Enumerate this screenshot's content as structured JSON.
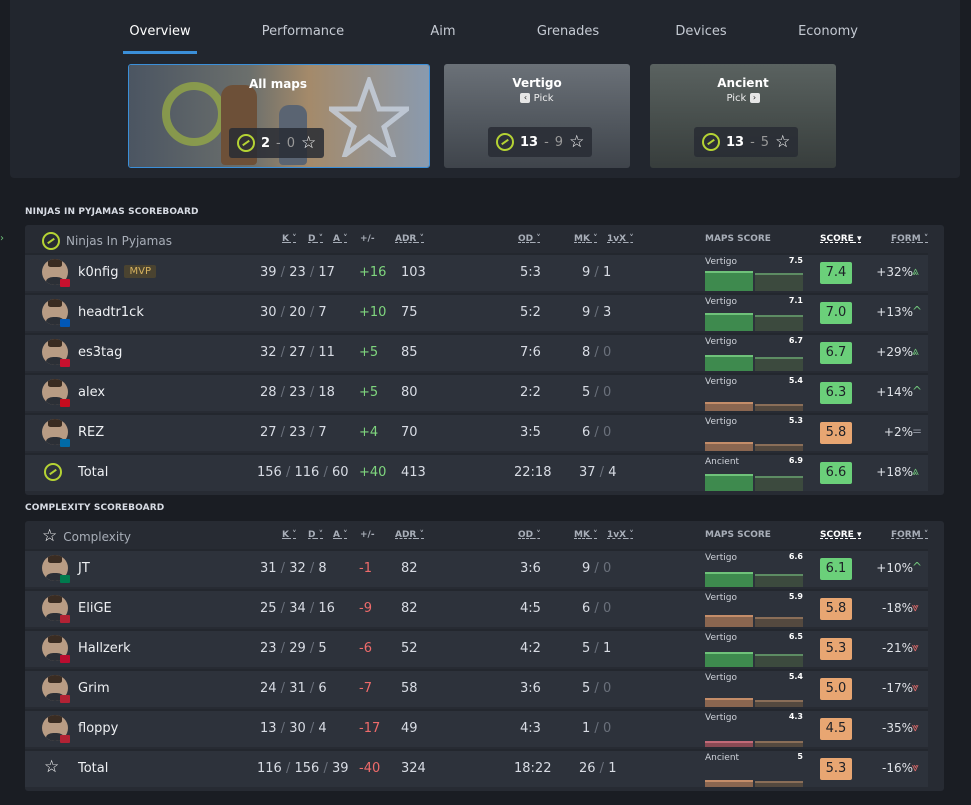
{
  "tabs": [
    "Overview",
    "Performance",
    "Aim",
    "Grenades",
    "Devices",
    "Economy"
  ],
  "maps": [
    {
      "title": "All maps",
      "pick": "",
      "pick_arrow": "",
      "won": "2",
      "lost": "0"
    },
    {
      "title": "Vertigo",
      "pick": "Pick",
      "pick_arrow": "‹",
      "won": "13",
      "lost": "9"
    },
    {
      "title": "Ancient",
      "pick": "Pick",
      "pick_arrow": "›",
      "won": "13",
      "lost": "5"
    }
  ],
  "scoreboards": [
    {
      "title": "NINJAS IN PYJAMAS SCOREBOARD",
      "team": "Ninjas In Pyjamas",
      "headers": {
        "k": "K",
        "d": "D",
        "a": "A",
        "pm": "+/-",
        "adr": "ADR",
        "od": "OD",
        "mk": "MK",
        "clutch": "1vX",
        "maps_score": "MAPS SCORE",
        "score": "SCORE",
        "form": "FORM"
      },
      "rows": [
        {
          "name": "k0nfig",
          "mvp": "MVP",
          "k": "39",
          "d": "23",
          "a": "17",
          "pm": "+16",
          "adr": "103",
          "od": "5:3",
          "mk": "9",
          "clutch": "1",
          "map": "Vertigo",
          "map_score": "7.5",
          "score": "7.4",
          "form": "+32%",
          "form_icon": "⩓",
          "flag": "#c8102e"
        },
        {
          "name": "headtr1ck",
          "mvp": "",
          "k": "30",
          "d": "20",
          "a": "7",
          "pm": "+10",
          "adr": "75",
          "od": "5:2",
          "mk": "9",
          "clutch": "3",
          "map": "Vertigo",
          "map_score": "7.1",
          "score": "7.0",
          "form": "+13%",
          "form_icon": "^",
          "flag": "#0057b7"
        },
        {
          "name": "es3tag",
          "mvp": "",
          "k": "32",
          "d": "27",
          "a": "11",
          "pm": "+5",
          "adr": "85",
          "od": "7:6",
          "mk": "8",
          "clutch": "0",
          "map": "Vertigo",
          "map_score": "6.7",
          "score": "6.7",
          "form": "+29%",
          "form_icon": "⩓",
          "flag": "#c8102e"
        },
        {
          "name": "alex",
          "mvp": "",
          "k": "28",
          "d": "23",
          "a": "18",
          "pm": "+5",
          "adr": "80",
          "od": "2:2",
          "mk": "5",
          "clutch": "0",
          "map": "Vertigo",
          "map_score": "5.4",
          "score": "6.3",
          "form": "+14%",
          "form_icon": "^",
          "flag": "#c60b1e"
        },
        {
          "name": "REZ",
          "mvp": "",
          "k": "27",
          "d": "23",
          "a": "7",
          "pm": "+4",
          "adr": "70",
          "od": "3:5",
          "mk": "6",
          "clutch": "0",
          "map": "Vertigo",
          "map_score": "5.3",
          "score": "5.8",
          "form": "+2%",
          "form_icon": "=",
          "flag": "#006aa7"
        }
      ],
      "total": {
        "name": "Total",
        "k": "156",
        "d": "116",
        "a": "60",
        "pm": "+40",
        "adr": "413",
        "od": "22:18",
        "mk": "37",
        "clutch": "4",
        "map": "Ancient",
        "map_score": "6.9",
        "score": "6.6",
        "form": "+18%",
        "form_icon": "⩓"
      }
    },
    {
      "title": "COMPLEXITY SCOREBOARD",
      "team": "Complexity",
      "headers": {
        "k": "K",
        "d": "D",
        "a": "A",
        "pm": "+/-",
        "adr": "ADR",
        "od": "OD",
        "mk": "MK",
        "clutch": "1vX",
        "maps_score": "MAPS SCORE",
        "score": "SCORE",
        "form": "FORM"
      },
      "rows": [
        {
          "name": "JT",
          "mvp": "",
          "k": "31",
          "d": "32",
          "a": "8",
          "pm": "-1",
          "adr": "82",
          "od": "3:6",
          "mk": "9",
          "clutch": "0",
          "map": "Vertigo",
          "map_score": "6.6",
          "score": "6.1",
          "form": "+10%",
          "form_icon": "^",
          "flag": "#007a4d"
        },
        {
          "name": "EliGE",
          "mvp": "",
          "k": "25",
          "d": "34",
          "a": "16",
          "pm": "-9",
          "adr": "82",
          "od": "4:5",
          "mk": "6",
          "clutch": "0",
          "map": "Vertigo",
          "map_score": "5.9",
          "score": "5.8",
          "form": "-18%",
          "form_icon": "⩔",
          "flag": "#b22234"
        },
        {
          "name": "Hallzerk",
          "mvp": "",
          "k": "23",
          "d": "29",
          "a": "5",
          "pm": "-6",
          "adr": "52",
          "od": "4:2",
          "mk": "5",
          "clutch": "1",
          "map": "Vertigo",
          "map_score": "6.5",
          "score": "5.3",
          "form": "-21%",
          "form_icon": "⩔",
          "flag": "#ba0c2f"
        },
        {
          "name": "Grim",
          "mvp": "",
          "k": "24",
          "d": "31",
          "a": "6",
          "pm": "-7",
          "adr": "58",
          "od": "3:6",
          "mk": "5",
          "clutch": "0",
          "map": "Vertigo",
          "map_score": "5.4",
          "score": "5.0",
          "form": "-17%",
          "form_icon": "⩔",
          "flag": "#b22234"
        },
        {
          "name": "floppy",
          "mvp": "",
          "k": "13",
          "d": "30",
          "a": "4",
          "pm": "-17",
          "adr": "49",
          "od": "4:3",
          "mk": "1",
          "clutch": "0",
          "map": "Vertigo",
          "map_score": "4.3",
          "score": "4.5",
          "form": "-35%",
          "form_icon": "⩔",
          "flag": "#b22234"
        }
      ],
      "total": {
        "name": "Total",
        "k": "116",
        "d": "156",
        "a": "39",
        "pm": "-40",
        "adr": "324",
        "od": "18:22",
        "mk": "26",
        "clutch": "1",
        "map": "Ancient",
        "map_score": "5",
        "score": "5.3",
        "form": "-16%",
        "form_icon": "⩔"
      }
    }
  ]
}
